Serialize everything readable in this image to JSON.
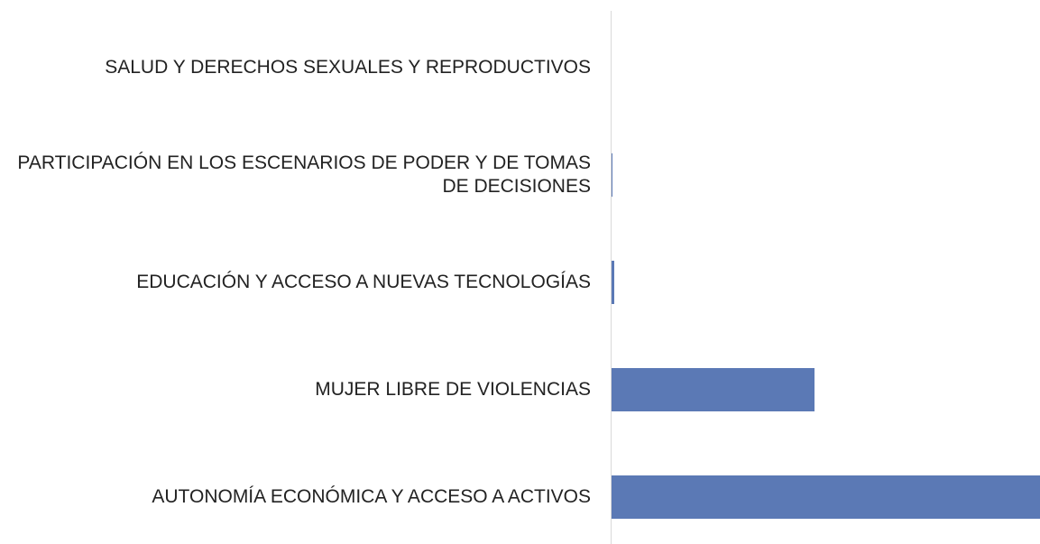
{
  "chart_data": {
    "type": "bar",
    "orientation": "horizontal",
    "categories": [
      "SALUD Y DERECHOS SEXUALES Y REPRODUCTIVOS",
      "PARTICIPACIÓN EN LOS ESCENARIOS DE PODER Y DE TOMAS DE DECISIONES",
      "EDUCACIÓN Y ACCESO A NUEVAS TECNOLOGÍAS",
      "MUJER LIBRE DE VIOLENCIAS",
      "AUTONOMÍA ECONÓMICA Y ACCESO A ACTIVOS"
    ],
    "values": [
      0,
      0.2,
      0.6,
      47.4,
      100
    ],
    "color": "#5b79b5"
  }
}
